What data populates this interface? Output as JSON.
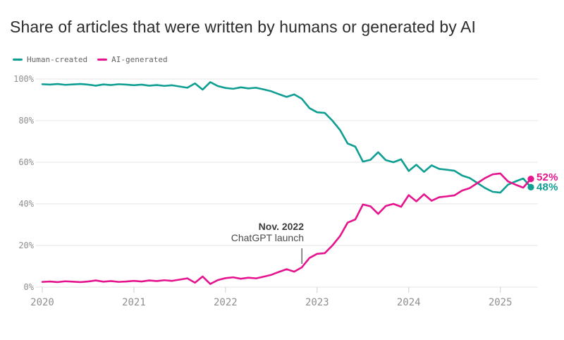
{
  "title": "Share of articles that were written by humans or generated by AI",
  "legend": {
    "items": [
      {
        "label": "Human-created",
        "color": "#0e9e92"
      },
      {
        "label": "AI-generated",
        "color": "#e5148e"
      }
    ]
  },
  "annotation": {
    "line1": "Nov. 2022",
    "line2": "ChatGPT launch",
    "month_index": 34
  },
  "end_labels": [
    {
      "text": "52%",
      "color": "#e5148e",
      "y_value": 52
    },
    {
      "text": "48%",
      "color": "#0e9e92",
      "y_value": 48
    }
  ],
  "colors": {
    "grid": "#e6e6e6",
    "tick": "#cfcfcf",
    "axis_text": "#8f8f8f",
    "annotation_line": "#1b1b1b",
    "background": "#ffffff"
  },
  "chart_data": {
    "type": "line",
    "title": "Share of articles that were written by humans or generated by AI",
    "x_unit": "month",
    "x_range": [
      "2020-01",
      "2025-05"
    ],
    "x_tick_labels": [
      "2020",
      "2021",
      "2022",
      "2023",
      "2024",
      "2025"
    ],
    "y_ticks": [
      100,
      80,
      60,
      40,
      20,
      0
    ],
    "y_tick_labels": [
      "100%",
      "80%",
      "60%",
      "40%",
      "20%",
      "0%"
    ],
    "ylim": [
      0,
      100
    ],
    "grid": true,
    "legend_position": "top-left",
    "annotations": [
      {
        "text": "Nov. 2022 ChatGPT launch",
        "x": "2022-11"
      }
    ],
    "series": [
      {
        "name": "Human-created",
        "color": "#0e9e92",
        "end_label": "48%",
        "values": [
          97.5,
          97.3,
          97.6,
          97.2,
          97.4,
          97.6,
          97.3,
          96.8,
          97.4,
          97.1,
          97.5,
          97.3,
          97.0,
          97.3,
          96.8,
          97.1,
          96.7,
          97.0,
          96.4,
          95.8,
          97.9,
          94.9,
          98.5,
          96.6,
          95.7,
          95.3,
          96.0,
          95.5,
          95.8,
          95.0,
          94.1,
          92.7,
          91.4,
          92.6,
          90.5,
          86.0,
          84.0,
          83.7,
          80.0,
          75.5,
          69.0,
          67.5,
          60.3,
          61.2,
          64.8,
          61.0,
          60.0,
          61.4,
          55.8,
          58.8,
          55.4,
          58.5,
          56.8,
          56.4,
          55.9,
          53.6,
          52.4,
          50.0,
          47.6,
          45.8,
          45.4,
          49.2,
          50.8,
          52.2,
          48.0
        ]
      },
      {
        "name": "AI-generated",
        "color": "#e5148e",
        "end_label": "52%",
        "values": [
          2.5,
          2.7,
          2.4,
          2.8,
          2.6,
          2.4,
          2.7,
          3.2,
          2.6,
          2.9,
          2.5,
          2.7,
          3.0,
          2.7,
          3.2,
          2.9,
          3.3,
          3.0,
          3.6,
          4.2,
          2.1,
          5.1,
          1.5,
          3.4,
          4.3,
          4.7,
          4.0,
          4.5,
          4.2,
          5.0,
          5.9,
          7.3,
          8.6,
          7.4,
          9.5,
          14.0,
          16.0,
          16.3,
          20.0,
          24.5,
          31.0,
          32.5,
          39.7,
          38.8,
          35.2,
          39.0,
          40.0,
          38.6,
          44.2,
          41.2,
          44.6,
          41.5,
          43.2,
          43.6,
          44.1,
          46.4,
          47.6,
          50.0,
          52.4,
          54.2,
          54.6,
          50.8,
          49.2,
          47.8,
          52.0
        ]
      }
    ]
  }
}
